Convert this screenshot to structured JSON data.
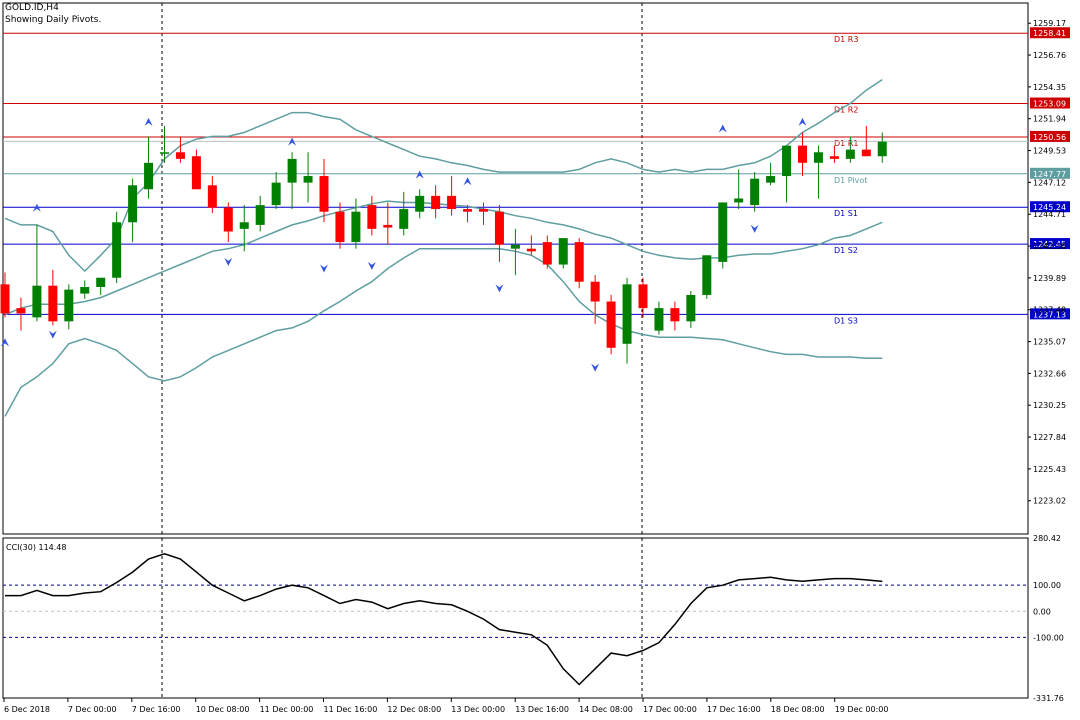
{
  "header": {
    "symbol_line": "GOLD.ID,H4",
    "status_line": "Showing Daily Pivots."
  },
  "colors": {
    "bull": "#008000",
    "bear": "#ff0000",
    "band": "#5f9ea0",
    "resistance": "#cc0000",
    "support": "#0000cc",
    "pivot": "#5f9ea0"
  },
  "chart_data": [
    {
      "type": "candlestick",
      "timeframe": "H4",
      "ylim": [
        1220.5,
        1260.7
      ],
      "y_ticks": [
        "1259.17",
        "1256.76",
        "1254.35",
        "1251.94",
        "1249.53",
        "1247.12",
        "1244.71",
        "1242.30",
        "1239.89",
        "1237.48",
        "1235.07",
        "1232.66",
        "1230.25",
        "1227.84",
        "1225.43",
        "1223.02"
      ],
      "x_labels": [
        "6 Dec 2018",
        "7 Dec 00:00",
        "7 Dec 16:00",
        "10 Dec 08:00",
        "11 Dec 00:00",
        "11 Dec 16:00",
        "12 Dec 08:00",
        "13 Dec 00:00",
        "13 Dec 16:00",
        "14 Dec 08:00",
        "17 Dec 00:00",
        "17 Dec 16:00",
        "18 Dec 08:00",
        "19 Dec 00:00"
      ],
      "pivot_levels": [
        {
          "label": "D1 R3",
          "value": "1258.41",
          "kind": "resistance"
        },
        {
          "label": "D1 R2",
          "value": "1253.09",
          "kind": "resistance"
        },
        {
          "label": "D1 R1",
          "value": "1250.56",
          "kind": "resistance"
        },
        {
          "label": "D1 Pivot",
          "value": "1247.77",
          "kind": "pivot"
        },
        {
          "label": "D1 S1",
          "value": "1245.24",
          "kind": "support"
        },
        {
          "label": "D1 S2",
          "value": "1242.45",
          "kind": "support"
        },
        {
          "label": "D1 S3",
          "value": "1237.13",
          "kind": "support"
        }
      ],
      "current_price": "1250.22",
      "candles": [
        {
          "o": 1239.4,
          "h": 1240.3,
          "l": 1236.9,
          "c": 1237.2
        },
        {
          "o": 1237.6,
          "h": 1238.4,
          "l": 1235.9,
          "c": 1237.2
        },
        {
          "o": 1236.9,
          "h": 1243.9,
          "l": 1236.6,
          "c": 1239.3
        },
        {
          "o": 1239.3,
          "h": 1240.5,
          "l": 1236.3,
          "c": 1236.6
        },
        {
          "o": 1236.6,
          "h": 1239.4,
          "l": 1236.0,
          "c": 1239.0
        },
        {
          "o": 1238.7,
          "h": 1239.7,
          "l": 1238.3,
          "c": 1239.2
        },
        {
          "o": 1239.2,
          "h": 1239.9,
          "l": 1238.6,
          "c": 1239.9
        },
        {
          "o": 1239.9,
          "h": 1244.9,
          "l": 1239.5,
          "c": 1244.1
        },
        {
          "o": 1244.1,
          "h": 1247.4,
          "l": 1242.6,
          "c": 1246.9
        },
        {
          "o": 1246.6,
          "h": 1250.6,
          "l": 1245.9,
          "c": 1248.6
        },
        {
          "o": 1249.4,
          "h": 1251.4,
          "l": 1248.6,
          "c": 1249.4
        },
        {
          "o": 1249.4,
          "h": 1250.6,
          "l": 1248.6,
          "c": 1248.9
        },
        {
          "o": 1249.1,
          "h": 1249.6,
          "l": 1246.6,
          "c": 1246.6
        },
        {
          "o": 1246.9,
          "h": 1247.6,
          "l": 1244.8,
          "c": 1245.2
        },
        {
          "o": 1245.2,
          "h": 1245.6,
          "l": 1242.6,
          "c": 1243.4
        },
        {
          "o": 1243.6,
          "h": 1245.4,
          "l": 1241.9,
          "c": 1244.1
        },
        {
          "o": 1243.9,
          "h": 1246.1,
          "l": 1243.4,
          "c": 1245.4
        },
        {
          "o": 1245.4,
          "h": 1247.9,
          "l": 1245.1,
          "c": 1247.1
        },
        {
          "o": 1247.1,
          "h": 1249.4,
          "l": 1245.1,
          "c": 1248.9
        },
        {
          "o": 1247.1,
          "h": 1249.4,
          "l": 1245.6,
          "c": 1247.6
        },
        {
          "o": 1247.6,
          "h": 1248.9,
          "l": 1244.1,
          "c": 1244.9
        },
        {
          "o": 1244.9,
          "h": 1245.6,
          "l": 1242.1,
          "c": 1242.6
        },
        {
          "o": 1242.6,
          "h": 1245.9,
          "l": 1242.1,
          "c": 1244.9
        },
        {
          "o": 1245.4,
          "h": 1246.1,
          "l": 1243.1,
          "c": 1243.6
        },
        {
          "o": 1243.9,
          "h": 1245.6,
          "l": 1242.4,
          "c": 1243.7
        },
        {
          "o": 1243.6,
          "h": 1246.4,
          "l": 1243.1,
          "c": 1245.1
        },
        {
          "o": 1244.9,
          "h": 1246.6,
          "l": 1244.4,
          "c": 1246.1
        },
        {
          "o": 1246.1,
          "h": 1246.9,
          "l": 1244.4,
          "c": 1245.1
        },
        {
          "o": 1246.1,
          "h": 1247.6,
          "l": 1244.6,
          "c": 1245.1
        },
        {
          "o": 1245.1,
          "h": 1245.4,
          "l": 1244.1,
          "c": 1244.9
        },
        {
          "o": 1245.1,
          "h": 1245.6,
          "l": 1243.9,
          "c": 1244.9
        },
        {
          "o": 1244.9,
          "h": 1245.4,
          "l": 1241.1,
          "c": 1242.4
        },
        {
          "o": 1242.1,
          "h": 1243.6,
          "l": 1240.1,
          "c": 1242.4
        },
        {
          "o": 1242.1,
          "h": 1243.1,
          "l": 1241.6,
          "c": 1241.9
        },
        {
          "o": 1242.6,
          "h": 1243.1,
          "l": 1240.6,
          "c": 1240.9
        },
        {
          "o": 1240.9,
          "h": 1242.9,
          "l": 1240.6,
          "c": 1242.9
        },
        {
          "o": 1242.6,
          "h": 1242.9,
          "l": 1239.1,
          "c": 1239.6
        },
        {
          "o": 1239.6,
          "h": 1240.1,
          "l": 1236.4,
          "c": 1238.1
        },
        {
          "o": 1238.1,
          "h": 1238.6,
          "l": 1234.1,
          "c": 1234.6
        },
        {
          "o": 1234.9,
          "h": 1239.9,
          "l": 1233.4,
          "c": 1239.4
        },
        {
          "o": 1239.4,
          "h": 1239.9,
          "l": 1236.9,
          "c": 1237.6
        },
        {
          "o": 1235.9,
          "h": 1238.1,
          "l": 1235.6,
          "c": 1237.6
        },
        {
          "o": 1237.6,
          "h": 1238.1,
          "l": 1235.9,
          "c": 1236.6
        },
        {
          "o": 1236.6,
          "h": 1238.9,
          "l": 1236.1,
          "c": 1238.6
        },
        {
          "o": 1238.6,
          "h": 1241.6,
          "l": 1238.3,
          "c": 1241.6
        },
        {
          "o": 1241.1,
          "h": 1245.6,
          "l": 1240.6,
          "c": 1245.6
        },
        {
          "o": 1245.6,
          "h": 1248.1,
          "l": 1245.1,
          "c": 1245.9
        },
        {
          "o": 1245.4,
          "h": 1247.9,
          "l": 1244.9,
          "c": 1247.4
        },
        {
          "o": 1247.1,
          "h": 1248.6,
          "l": 1246.9,
          "c": 1247.6
        },
        {
          "o": 1247.6,
          "h": 1249.9,
          "l": 1245.6,
          "c": 1249.9
        },
        {
          "o": 1249.9,
          "h": 1250.9,
          "l": 1247.6,
          "c": 1248.6
        },
        {
          "o": 1248.6,
          "h": 1249.9,
          "l": 1245.9,
          "c": 1249.4
        },
        {
          "o": 1249.1,
          "h": 1249.9,
          "l": 1248.6,
          "c": 1248.9
        },
        {
          "o": 1248.9,
          "h": 1250.6,
          "l": 1248.6,
          "c": 1249.6
        },
        {
          "o": 1249.6,
          "h": 1251.4,
          "l": 1249.1,
          "c": 1249.1
        },
        {
          "o": 1249.1,
          "h": 1250.9,
          "l": 1248.6,
          "c": 1250.2
        }
      ],
      "bollinger_upper": [
        1244.4,
        1243.9,
        1243.9,
        1243.4,
        1241.6,
        1240.4,
        1241.6,
        1242.9,
        1245.9,
        1247.1,
        1248.9,
        1249.9,
        1250.4,
        1250.6,
        1250.6,
        1250.9,
        1251.4,
        1251.9,
        1252.4,
        1252.4,
        1252.1,
        1251.9,
        1251.1,
        1250.6,
        1250.1,
        1249.6,
        1249.1,
        1248.9,
        1248.6,
        1248.4,
        1248.1,
        1247.9,
        1247.9,
        1247.9,
        1247.9,
        1247.9,
        1248.1,
        1248.6,
        1248.9,
        1248.6,
        1248.1,
        1247.9,
        1248.1,
        1247.9,
        1248.1,
        1248.1,
        1248.4,
        1248.6,
        1249.1,
        1249.9,
        1250.9,
        1251.6,
        1252.4,
        1253.1,
        1254.1,
        1254.9
      ],
      "bollinger_middle": [
        1237.1,
        1237.6,
        1237.9,
        1237.9,
        1237.9,
        1238.1,
        1238.4,
        1238.9,
        1239.4,
        1239.9,
        1240.4,
        1240.9,
        1241.4,
        1241.9,
        1242.1,
        1242.4,
        1242.9,
        1243.4,
        1243.9,
        1244.2,
        1244.6,
        1244.9,
        1245.2,
        1245.5,
        1245.7,
        1245.6,
        1245.6,
        1245.5,
        1245.4,
        1245.3,
        1245.1,
        1244.9,
        1244.6,
        1244.4,
        1244.1,
        1243.9,
        1243.6,
        1243.2,
        1242.9,
        1242.4,
        1241.9,
        1241.6,
        1241.4,
        1241.3,
        1241.4,
        1241.4,
        1241.6,
        1241.7,
        1241.7,
        1241.9,
        1242.1,
        1242.4,
        1242.9,
        1243.1,
        1243.6,
        1244.1
      ],
      "bollinger_lower": [
        1229.4,
        1231.6,
        1232.4,
        1233.4,
        1234.9,
        1235.3,
        1234.9,
        1234.4,
        1233.4,
        1232.4,
        1232.1,
        1232.4,
        1233.1,
        1233.9,
        1234.4,
        1234.9,
        1235.4,
        1235.9,
        1236.1,
        1236.6,
        1237.4,
        1238.1,
        1238.9,
        1239.6,
        1240.6,
        1241.4,
        1242.1,
        1242.1,
        1242.1,
        1242.1,
        1242.1,
        1242.1,
        1241.9,
        1241.6,
        1240.9,
        1239.6,
        1238.1,
        1237.1,
        1236.4,
        1235.9,
        1235.6,
        1235.4,
        1235.4,
        1235.4,
        1235.3,
        1235.2,
        1234.9,
        1234.6,
        1234.3,
        1234.1,
        1234.1,
        1233.9,
        1233.9,
        1233.9,
        1233.8,
        1233.8
      ],
      "fractals_up": [
        {
          "i": 0,
          "v": 1234.7
        },
        {
          "i": 2,
          "v": 1244.9
        },
        {
          "i": 9,
          "v": 1251.4
        },
        {
          "i": 18,
          "v": 1249.9
        },
        {
          "i": 26,
          "v": 1247.4
        },
        {
          "i": 29,
          "v": 1246.9
        },
        {
          "i": 45,
          "v": 1250.9
        },
        {
          "i": 50,
          "v": 1251.4
        }
      ],
      "fractals_down": [
        {
          "i": 3,
          "v": 1235.9
        },
        {
          "i": 14,
          "v": 1241.4
        },
        {
          "i": 20,
          "v": 1240.9
        },
        {
          "i": 23,
          "v": 1241.1
        },
        {
          "i": 31,
          "v": 1239.4
        },
        {
          "i": 37,
          "v": 1233.4
        },
        {
          "i": 47,
          "v": 1243.9
        }
      ]
    },
    {
      "type": "line",
      "title": "CCI(30) 114.48",
      "ylim": [
        -331.76,
        280.42
      ],
      "y_ticks": [
        "280.42",
        "100.00",
        "0.00",
        "-100.00",
        "-331.76"
      ],
      "reference_levels": [
        100,
        0,
        -100
      ],
      "values": [
        60,
        60,
        80,
        60,
        60,
        70,
        75,
        110,
        150,
        200,
        220,
        200,
        150,
        100,
        70,
        40,
        60,
        85,
        100,
        90,
        60,
        30,
        45,
        35,
        10,
        30,
        40,
        30,
        25,
        0,
        -30,
        -70,
        -80,
        -90,
        -130,
        -220,
        -280,
        -220,
        -160,
        -170,
        -150,
        -120,
        -50,
        30,
        90,
        100,
        120,
        125,
        130,
        120,
        115,
        120,
        125,
        125,
        120,
        114.48
      ]
    }
  ]
}
